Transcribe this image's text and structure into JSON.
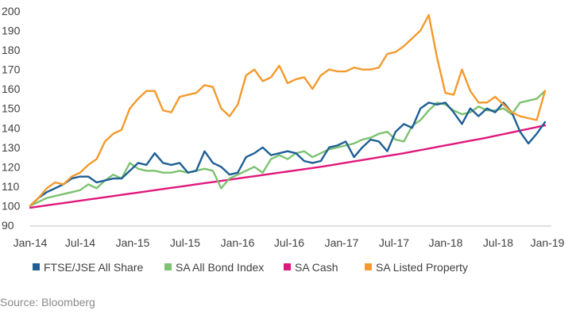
{
  "chart_data": {
    "type": "line",
    "title": "",
    "xlabel": "",
    "ylabel": "",
    "ylim": [
      90,
      200
    ],
    "y_ticks": [
      90,
      100,
      110,
      120,
      130,
      140,
      150,
      160,
      170,
      180,
      190,
      200
    ],
    "x_tick_labels": [
      "Jan-14",
      "Jul-14",
      "Jan-15",
      "Jul-15",
      "Jan-16",
      "Jul-16",
      "Jan-17",
      "Jul-17",
      "Jan-18",
      "Jul-18",
      "Jan-19"
    ],
    "x_start": "Jan-14",
    "grid": false,
    "legend_position": "bottom",
    "series": [
      {
        "name": "FTSE/JSE All Share",
        "color": "#1f5f95",
        "values": [
          100,
          104,
          107,
          109,
          111,
          114,
          115,
          115,
          112,
          113,
          114,
          114,
          118,
          122,
          121,
          127,
          122,
          121,
          122,
          117,
          118,
          128,
          122,
          120,
          116,
          117,
          125,
          127,
          130,
          126,
          127,
          128,
          127,
          123,
          122,
          123,
          130,
          131,
          133,
          125,
          130,
          134,
          133,
          128,
          138,
          142,
          140,
          150,
          153,
          152,
          153,
          148,
          142,
          150,
          146,
          150,
          148,
          153,
          148,
          138,
          132,
          137,
          143
        ]
      },
      {
        "name": "SA All Bond Index",
        "color": "#7cc270",
        "values": [
          100,
          102,
          104,
          105,
          106,
          107,
          108,
          111,
          109,
          113,
          116,
          114,
          122,
          119,
          118,
          118,
          117,
          117,
          118,
          117,
          118,
          119,
          118,
          109,
          114,
          116,
          118,
          120,
          117,
          124,
          126,
          124,
          127,
          128,
          125,
          127,
          129,
          130,
          131,
          132,
          134,
          135,
          137,
          138,
          134,
          133,
          141,
          144,
          149,
          153,
          152,
          149,
          147,
          148,
          151,
          149,
          149,
          150,
          147,
          153,
          154,
          155,
          159
        ]
      },
      {
        "name": "SA Cash",
        "color": "#e0187c",
        "values": [
          99,
          99.6,
          100.2,
          100.8,
          101.4,
          102,
          102.6,
          103.2,
          103.8,
          104.4,
          105,
          105.6,
          106.2,
          106.8,
          107.4,
          108,
          108.6,
          109.2,
          109.8,
          110.4,
          111,
          111.6,
          112.2,
          112.8,
          113.4,
          114,
          114.6,
          115.2,
          115.8,
          116.4,
          117,
          117.6,
          118.2,
          118.8,
          119.4,
          120,
          120.7,
          121.4,
          122.1,
          122.8,
          123.5,
          124.2,
          124.9,
          125.6,
          126.3,
          127,
          127.8,
          128.6,
          129.4,
          130.2,
          131,
          131.8,
          132.6,
          133.4,
          134.2,
          135,
          135.9,
          136.8,
          137.7,
          138.6,
          139.5,
          140.4,
          141.3
        ]
      },
      {
        "name": "SA Listed Property",
        "color": "#f39a2c",
        "values": [
          100,
          104,
          109,
          112,
          111,
          115,
          117,
          121,
          124,
          133,
          137,
          139,
          150,
          155,
          159,
          159,
          149,
          148,
          156,
          157,
          158,
          162,
          161,
          150,
          146,
          152,
          167,
          170,
          164,
          166,
          172,
          163,
          165,
          166,
          160,
          167,
          170,
          169,
          169,
          171,
          170,
          170,
          171,
          178,
          179,
          182,
          186,
          190,
          198,
          176,
          158,
          157,
          170,
          159,
          153,
          153,
          156,
          152,
          148,
          146,
          145,
          144,
          159
        ]
      }
    ]
  },
  "source_text": "Source: Bloomberg"
}
